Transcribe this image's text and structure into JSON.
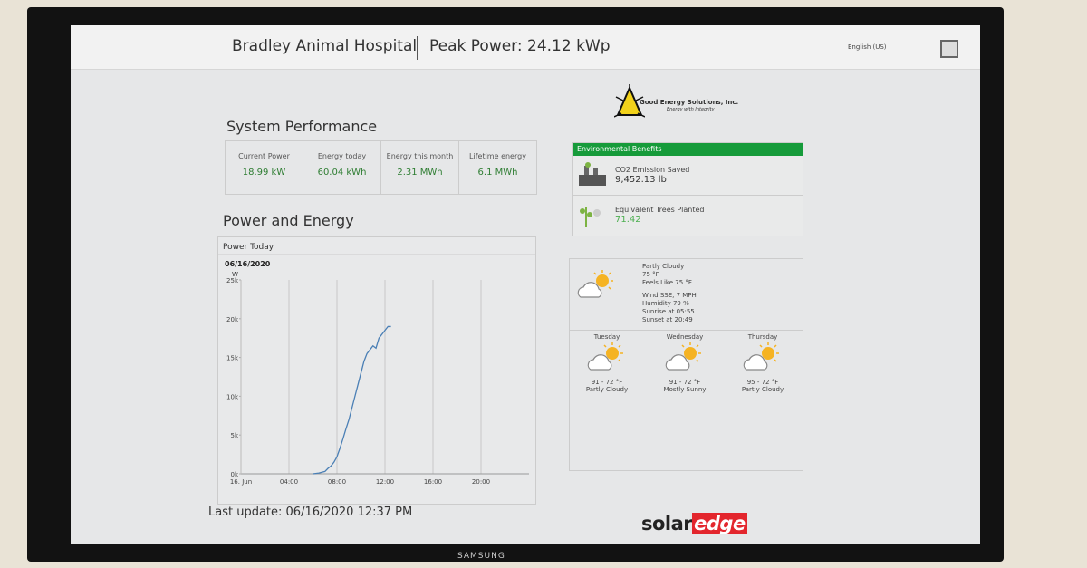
{
  "header": {
    "site": "Bradley Animal Hospital",
    "peak": "Peak Power: 24.12 kWp",
    "language": "English (US)"
  },
  "logo": {
    "name": "Good Energy Solutions, Inc.",
    "tagline": "Energy with Integrity"
  },
  "performance": {
    "title": "System Performance",
    "items": [
      {
        "label": "Current Power",
        "value": "18.99 kW"
      },
      {
        "label": "Energy today",
        "value": "60.04 kWh"
      },
      {
        "label": "Energy this month",
        "value": "2.31 MWh"
      },
      {
        "label": "Lifetime energy",
        "value": "6.1 MWh"
      }
    ]
  },
  "environment": {
    "title": "Environmental Benefits",
    "items": [
      {
        "label": "CO2 Emission Saved",
        "value": "9,452.13 lb"
      },
      {
        "label": "Equivalent Trees Planted",
        "value": "71.42"
      }
    ]
  },
  "weather": {
    "current": [
      "Partly Cloudy",
      "75 °F",
      "Feels Like 75 °F",
      "Wind SSE, 7 MPH",
      "Humidity 79 %",
      "Sunrise at 05:55",
      "Sunset at 20:49"
    ],
    "forecast": [
      {
        "day": "Tuesday",
        "temp": "91 - 72 °F",
        "condition": "Partly Cloudy"
      },
      {
        "day": "Wednesday",
        "temp": "91 - 72 °F",
        "condition": "Mostly Sunny"
      },
      {
        "day": "Thursday",
        "temp": "95 - 72 °F",
        "condition": "Partly Cloudy"
      }
    ]
  },
  "power_energy": {
    "title": "Power and Energy",
    "panel": "Power Today",
    "date": "06/16/2020"
  },
  "chart_data": {
    "type": "line",
    "y_label": "W",
    "color": "#4a7fb5",
    "x": [
      6,
      6.5,
      7,
      7.25,
      7.5,
      7.75,
      8,
      8.25,
      8.5,
      8.75,
      9,
      9.25,
      9.5,
      9.75,
      10,
      10.25,
      10.5,
      10.75,
      11,
      11.25,
      11.5,
      11.75,
      12,
      12.25,
      12.5
    ],
    "values": [
      0,
      100,
      300,
      700,
      1000,
      1500,
      2200,
      3300,
      4500,
      5800,
      7000,
      8500,
      10000,
      11500,
      13000,
      14500,
      15500,
      16000,
      16500,
      16200,
      17500,
      18000,
      18500,
      19000,
      18990
    ],
    "xlim": [
      0,
      24
    ],
    "xticks": [
      {
        "value": 0,
        "label": "16. Jun"
      },
      {
        "value": 4,
        "label": "04:00"
      },
      {
        "value": 8,
        "label": "08:00"
      },
      {
        "value": 12,
        "label": "12:00"
      },
      {
        "value": 16,
        "label": "16:00"
      },
      {
        "value": 20,
        "label": "20:00"
      }
    ],
    "ylim": [
      0,
      25000
    ],
    "yticks": [
      {
        "value": 0,
        "label": "0k"
      },
      {
        "value": 5000,
        "label": "5k"
      },
      {
        "value": 10000,
        "label": "10k"
      },
      {
        "value": 15000,
        "label": "15k"
      },
      {
        "value": 20000,
        "label": "20k"
      },
      {
        "value": 25000,
        "label": "25k"
      }
    ],
    "grid": true
  },
  "footer": {
    "last_update": "Last update: 06/16/2020 12:37 PM",
    "brand_a": "solar",
    "brand_b": "edge"
  },
  "tv": {
    "brand": "SAMSUNG"
  }
}
